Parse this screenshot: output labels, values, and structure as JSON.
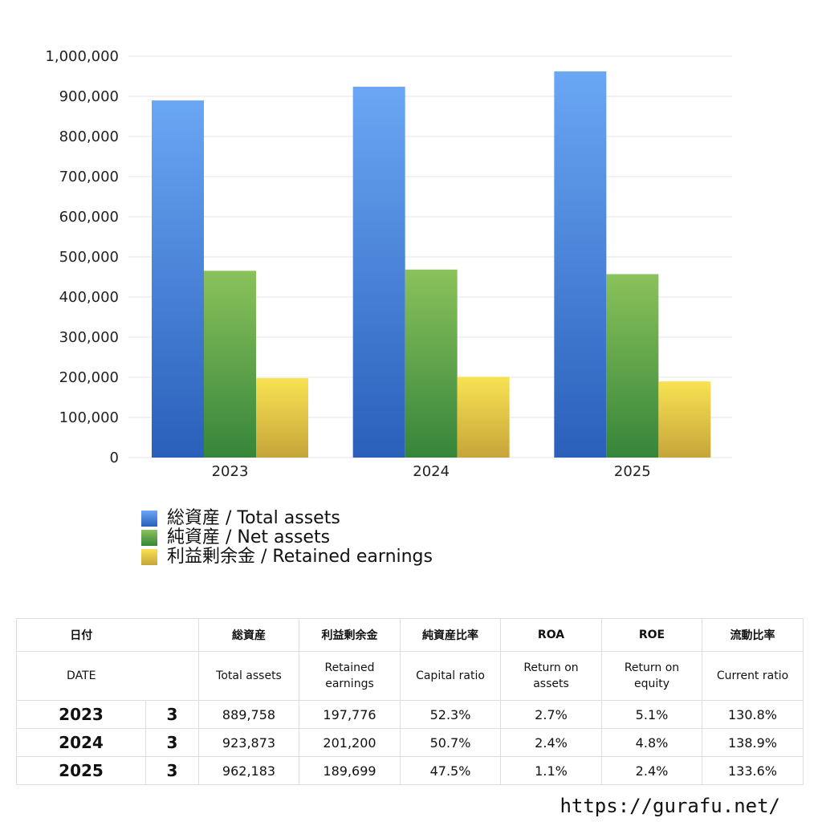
{
  "chart_data": {
    "type": "bar",
    "categories": [
      "2023",
      "2024",
      "2025"
    ],
    "series": [
      {
        "name": "総資産 / Total assets",
        "values": [
          889758,
          923873,
          962183
        ],
        "color_top": "#6aa7f4",
        "color_bottom": "#2a5fba"
      },
      {
        "name": "純資産 / Net assets",
        "values": [
          465300,
          468400,
          457000
        ],
        "color_top": "#8ac25b",
        "color_bottom": "#36853a"
      },
      {
        "name": "利益剰余金 / Retained earnings",
        "values": [
          197776,
          201200,
          189699
        ],
        "color_top": "#f8e252",
        "color_bottom": "#c6a53a"
      }
    ],
    "ylim": [
      0,
      1000000
    ],
    "yticks": [
      0,
      100000,
      200000,
      300000,
      400000,
      500000,
      600000,
      700000,
      800000,
      900000,
      1000000
    ],
    "ytick_labels": [
      "0",
      "100,000",
      "200,000",
      "300,000",
      "400,000",
      "500,000",
      "600,000",
      "700,000",
      "800,000",
      "900,000",
      "1,000,000"
    ],
    "grid": true,
    "legend_position": "bottom-left"
  },
  "table": {
    "header_jp": [
      "日付",
      "",
      "総資産",
      "利益剰余金",
      "純資産比率",
      "ROA",
      "ROE",
      "流動比率"
    ],
    "header_en": [
      "DATE",
      "",
      "Total assets",
      "Retained earnings",
      "Capital ratio",
      "Return on assets",
      "Return on equity",
      "Current ratio"
    ],
    "rows": [
      [
        "2023",
        "3",
        "889,758",
        "197,776",
        "52.3%",
        "2.7%",
        "5.1%",
        "130.8%"
      ],
      [
        "2024",
        "3",
        "923,873",
        "201,200",
        "50.7%",
        "2.4%",
        "4.8%",
        "138.9%"
      ],
      [
        "2025",
        "3",
        "962,183",
        "189,699",
        "47.5%",
        "1.1%",
        "2.4%",
        "133.6%"
      ]
    ]
  },
  "footer": {
    "url": "https://gurafu.net/"
  }
}
